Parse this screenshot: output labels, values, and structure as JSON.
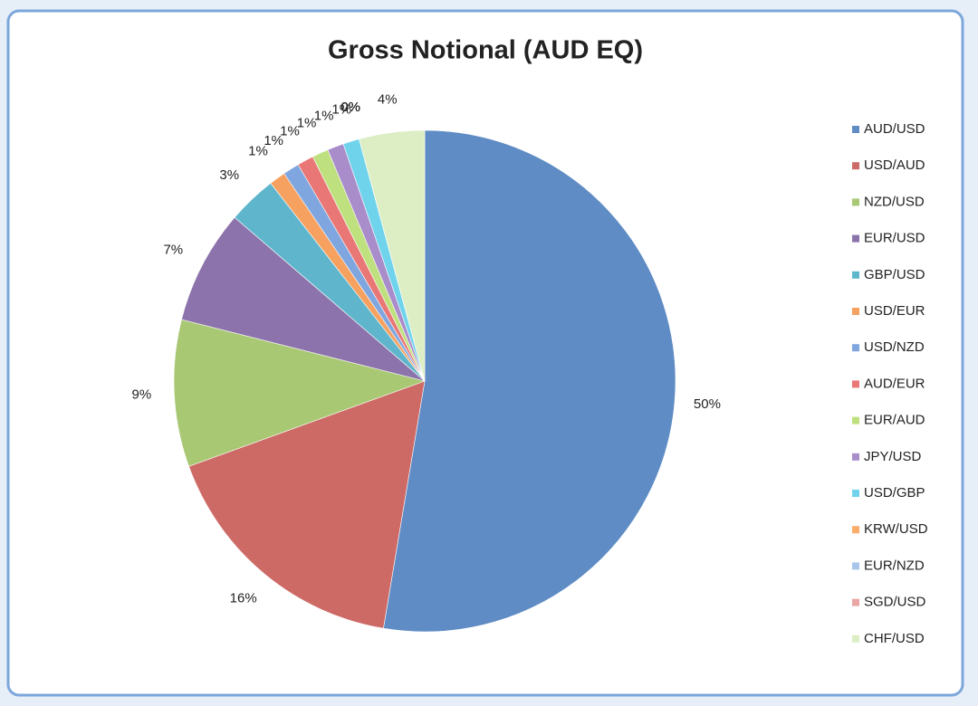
{
  "chart_data": {
    "type": "pie",
    "title": "Gross Notional (AUD EQ)",
    "categories": [
      "AUD/USD",
      "USD/AUD",
      "NZD/USD",
      "EUR/USD",
      "GBP/USD",
      "USD/EUR",
      "USD/NZD",
      "AUD/EUR",
      "EUR/AUD",
      "JPY/USD",
      "USD/GBP",
      "KRW/USD",
      "EUR/NZD",
      "SGD/USD",
      "CHF/USD"
    ],
    "values": [
      50,
      16,
      9,
      7,
      3,
      1,
      1,
      1,
      1,
      1,
      1,
      0,
      0,
      0,
      4
    ],
    "value_labels": [
      "50%",
      "16%",
      "9%",
      "7%",
      "3%",
      "1%",
      "1%",
      "1%",
      "1%",
      "1%",
      "1%",
      "0%",
      "0%",
      "0%",
      "4%"
    ],
    "colors": [
      "#5f8cc4",
      "#cd6a66",
      "#a9c874",
      "#8c73ab",
      "#5fb6cc",
      "#f6a160",
      "#7fa6df",
      "#e87775",
      "#bfe07e",
      "#a98dca",
      "#70d3ec",
      "#fbac69",
      "#aac5ec",
      "#eaa6a5",
      "#ddeec4"
    ],
    "legend": "right"
  }
}
